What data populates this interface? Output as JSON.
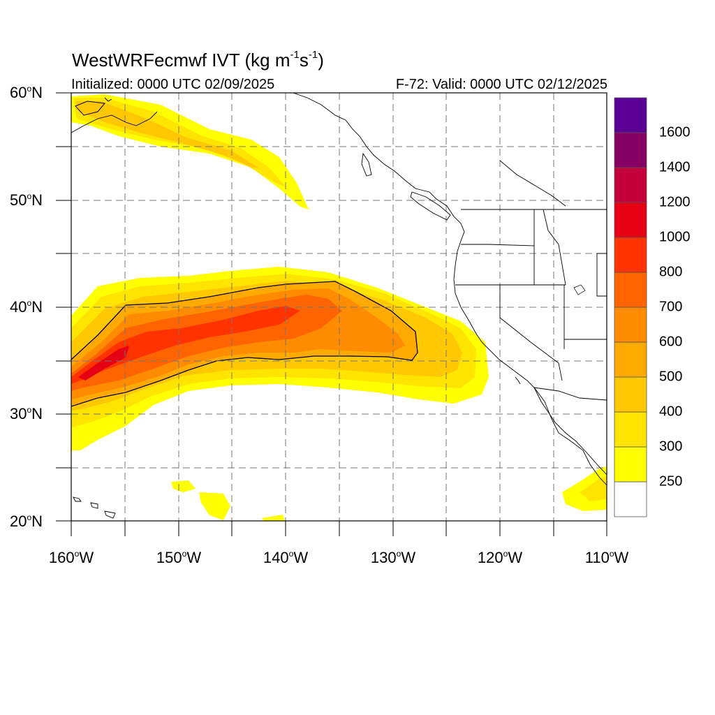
{
  "title": {
    "text_main": "WestWRFecmwf IVT (kg m",
    "sup1": "-1",
    "text_mid": "s",
    "sup2": "-1",
    "text_end": ")"
  },
  "subtitle_left": "Initialized: 0000 UTC 02/09/2025",
  "subtitle_right": "F-72: Valid: 0000 UTC 02/12/2025",
  "lat_labels": [
    {
      "num": "60",
      "unit": "N",
      "deg": "o"
    },
    {
      "num": "50",
      "unit": "N",
      "deg": "o"
    },
    {
      "num": "40",
      "unit": "N",
      "deg": "o"
    },
    {
      "num": "30",
      "unit": "N",
      "deg": "o"
    },
    {
      "num": "20",
      "unit": "N",
      "deg": "o"
    }
  ],
  "lon_labels": [
    {
      "num": "160",
      "unit": "W",
      "deg": "o"
    },
    {
      "num": "150",
      "unit": "W",
      "deg": "o"
    },
    {
      "num": "140",
      "unit": "W",
      "deg": "o"
    },
    {
      "num": "130",
      "unit": "W",
      "deg": "o"
    },
    {
      "num": "120",
      "unit": "W",
      "deg": "o"
    },
    {
      "num": "110",
      "unit": "W",
      "deg": "o"
    }
  ],
  "colorbar": {
    "labels": [
      "1600",
      "1400",
      "1200",
      "1000",
      "800",
      "700",
      "600",
      "500",
      "400",
      "300",
      "250"
    ],
    "colors": [
      "#ffffff",
      "#ffff00",
      "#ffe400",
      "#ffc800",
      "#ffaa00",
      "#ff8c00",
      "#ff6400",
      "#ff3200",
      "#e60014",
      "#c3003c",
      "#870064",
      "#5a0096"
    ]
  },
  "map": {
    "lon_range": [
      -160,
      -110
    ],
    "lat_range": [
      20,
      60
    ],
    "contour_level_shown": "500"
  }
}
